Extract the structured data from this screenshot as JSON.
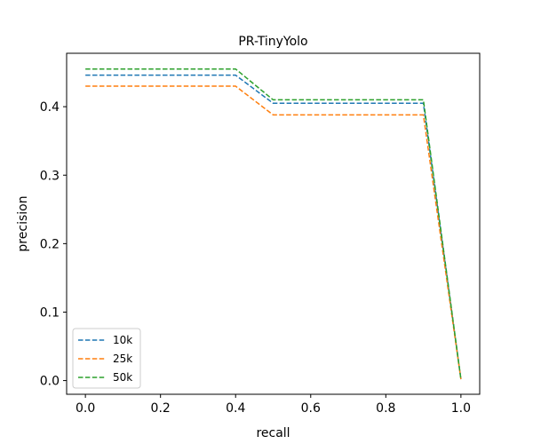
{
  "chart_data": {
    "type": "line",
    "title": "PR-TinyYolo",
    "xlabel": "recall",
    "ylabel": "precision",
    "xlim": [
      -0.05,
      1.05
    ],
    "ylim": [
      -0.02,
      0.478
    ],
    "xticks": [
      0.0,
      0.2,
      0.4,
      0.6,
      0.8,
      1.0
    ],
    "xtick_labels": [
      "0.0",
      "0.2",
      "0.4",
      "0.6",
      "0.8",
      "1.0"
    ],
    "yticks": [
      0.0,
      0.1,
      0.2,
      0.3,
      0.4
    ],
    "ytick_labels": [
      "0.0",
      "0.1",
      "0.2",
      "0.3",
      "0.4"
    ],
    "grid": false,
    "legend_position": "lower-left",
    "line_style": "dashed",
    "series": [
      {
        "name": "10k",
        "color": "#1f77b4",
        "x": [
          0.0,
          0.4,
          0.5,
          0.9,
          1.0
        ],
        "y": [
          0.446,
          0.446,
          0.405,
          0.405,
          0.002
        ]
      },
      {
        "name": "25k",
        "color": "#ff7f0e",
        "x": [
          0.0,
          0.4,
          0.5,
          0.9,
          1.0
        ],
        "y": [
          0.43,
          0.43,
          0.388,
          0.388,
          0.002
        ]
      },
      {
        "name": "50k",
        "color": "#2ca02c",
        "x": [
          0.0,
          0.4,
          0.5,
          0.9,
          1.0
        ],
        "y": [
          0.455,
          0.455,
          0.41,
          0.41,
          0.002
        ]
      }
    ]
  }
}
